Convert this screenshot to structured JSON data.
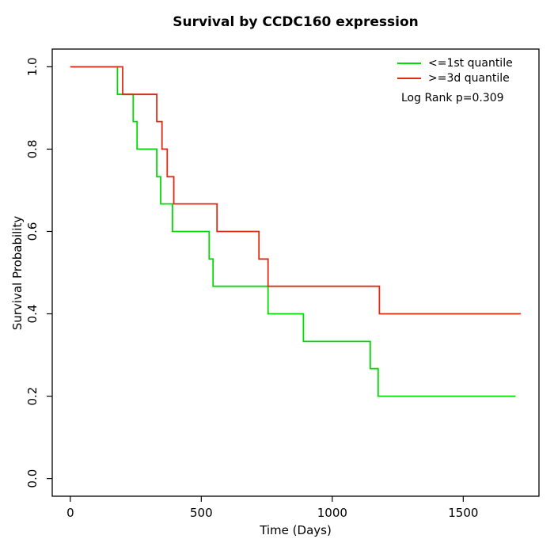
{
  "chart_data": {
    "type": "line",
    "subtype": "kaplan-meier-step",
    "title": "Survival by CCDC160 expression",
    "xlabel": "Time (Days)",
    "ylabel": "Survival Probability",
    "xlim": [
      -69,
      1789
    ],
    "ylim": [
      -0.043,
      1.043
    ],
    "xticks": [
      0,
      500,
      1000,
      1500
    ],
    "yticks": [
      0.0,
      0.2,
      0.4,
      0.6,
      0.8,
      1.0
    ],
    "grid": false,
    "legend_position": "top-right",
    "annotation": "Log Rank p=0.309",
    "series": [
      {
        "name": "<=1st quantile",
        "color": "#00DC00",
        "steps": [
          [
            0,
            1.0
          ],
          [
            180,
            0.933
          ],
          [
            240,
            0.867
          ],
          [
            255,
            0.8
          ],
          [
            330,
            0.733
          ],
          [
            345,
            0.667
          ],
          [
            390,
            0.6
          ],
          [
            530,
            0.533
          ],
          [
            545,
            0.467
          ],
          [
            755,
            0.4
          ],
          [
            890,
            0.333
          ],
          [
            1145,
            0.267
          ],
          [
            1175,
            0.2
          ],
          [
            1700,
            0.2
          ]
        ]
      },
      {
        "name": ">=3d quantile",
        "color": "#E02A12",
        "steps": [
          [
            0,
            1.0
          ],
          [
            200,
            0.933
          ],
          [
            330,
            0.867
          ],
          [
            350,
            0.8
          ],
          [
            370,
            0.733
          ],
          [
            395,
            0.667
          ],
          [
            560,
            0.6
          ],
          [
            720,
            0.533
          ],
          [
            755,
            0.467
          ],
          [
            1180,
            0.4
          ],
          [
            1720,
            0.4
          ]
        ]
      }
    ]
  }
}
